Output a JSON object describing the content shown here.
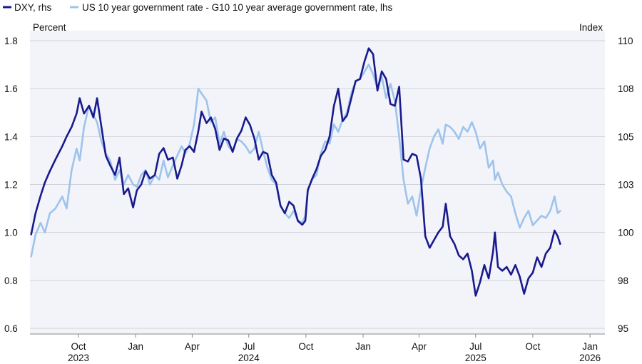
{
  "chart_data": {
    "type": "line",
    "title": "",
    "legend": {
      "placement": "top-left",
      "entries": [
        {
          "label": "DXY, rhs",
          "color": "#1a1a8c"
        },
        {
          "label": "US 10 year government rate - G10 10 year average government rate, lhs",
          "color": "#9ec3ec"
        }
      ]
    },
    "y_left": {
      "unit_label": "Percent",
      "min": 0.6,
      "max": 1.8,
      "ticks": [
        "0.6",
        "0.8",
        "1.0",
        "1.2",
        "1.4",
        "1.6",
        "1.8"
      ]
    },
    "y_right": {
      "unit_label": "Index",
      "min": 95,
      "max": 110,
      "ticks": [
        "95",
        "98",
        "100",
        "103",
        "105",
        "108",
        "110"
      ]
    },
    "x_axis": {
      "start": "2023-07-15",
      "end": "2026-01-25",
      "ticks": [
        {
          "date": "2023-10-01",
          "label": "Oct"
        },
        {
          "date": "2024-01-01",
          "label": "Jan"
        },
        {
          "date": "2024-04-01",
          "label": "Apr"
        },
        {
          "date": "2024-07-01",
          "label": "Jul"
        },
        {
          "date": "2024-10-01",
          "label": "Oct"
        },
        {
          "date": "2025-01-01",
          "label": "Jan"
        },
        {
          "date": "2025-04-01",
          "label": "Apr"
        },
        {
          "date": "2025-07-01",
          "label": "Jul"
        },
        {
          "date": "2025-10-01",
          "label": "Oct"
        },
        {
          "date": "2026-01-01",
          "label": "Jan"
        }
      ],
      "years": [
        {
          "date": "2023-10-01",
          "label": "2023"
        },
        {
          "date": "2024-07-01",
          "label": "2024"
        },
        {
          "date": "2025-07-01",
          "label": "2025"
        },
        {
          "date": "2026-01-01",
          "label": "2026"
        }
      ]
    },
    "grid": true,
    "series": [
      {
        "name": "DXY, rhs",
        "axis": "right",
        "color": "#1a1a8c",
        "points": [
          [
            "2023-07-17",
            99.9
          ],
          [
            "2023-07-24",
            101.0
          ],
          [
            "2023-08-01",
            101.9
          ],
          [
            "2023-08-08",
            102.6
          ],
          [
            "2023-08-16",
            103.2
          ],
          [
            "2023-08-25",
            103.8
          ],
          [
            "2023-09-05",
            104.5
          ],
          [
            "2023-09-12",
            105.0
          ],
          [
            "2023-09-20",
            105.5
          ],
          [
            "2023-09-28",
            106.2
          ],
          [
            "2023-10-03",
            107.0
          ],
          [
            "2023-10-10",
            106.2
          ],
          [
            "2023-10-18",
            106.6
          ],
          [
            "2023-10-25",
            106.0
          ],
          [
            "2023-10-31",
            107.0
          ],
          [
            "2023-11-07",
            105.5
          ],
          [
            "2023-11-14",
            104.0
          ],
          [
            "2023-11-21",
            103.5
          ],
          [
            "2023-11-29",
            103.0
          ],
          [
            "2023-12-06",
            103.9
          ],
          [
            "2023-12-13",
            102.0
          ],
          [
            "2023-12-20",
            102.3
          ],
          [
            "2023-12-28",
            101.3
          ],
          [
            "2024-01-03",
            102.2
          ],
          [
            "2024-01-10",
            102.5
          ],
          [
            "2024-01-17",
            103.2
          ],
          [
            "2024-01-24",
            102.8
          ],
          [
            "2024-02-01",
            103.0
          ],
          [
            "2024-02-08",
            104.1
          ],
          [
            "2024-02-15",
            104.4
          ],
          [
            "2024-02-22",
            103.8
          ],
          [
            "2024-03-01",
            103.9
          ],
          [
            "2024-03-08",
            102.8
          ],
          [
            "2024-03-15",
            103.5
          ],
          [
            "2024-03-21",
            104.3
          ],
          [
            "2024-03-28",
            104.5
          ],
          [
            "2024-04-04",
            104.2
          ],
          [
            "2024-04-11",
            105.3
          ],
          [
            "2024-04-16",
            106.3
          ],
          [
            "2024-04-24",
            105.7
          ],
          [
            "2024-05-01",
            106.0
          ],
          [
            "2024-05-08",
            105.4
          ],
          [
            "2024-05-15",
            104.3
          ],
          [
            "2024-05-22",
            104.9
          ],
          [
            "2024-05-29",
            104.8
          ],
          [
            "2024-06-05",
            104.2
          ],
          [
            "2024-06-12",
            104.9
          ],
          [
            "2024-06-19",
            105.3
          ],
          [
            "2024-06-26",
            106.0
          ],
          [
            "2024-07-03",
            105.6
          ],
          [
            "2024-07-10",
            104.9
          ],
          [
            "2024-07-17",
            103.8
          ],
          [
            "2024-07-24",
            104.2
          ],
          [
            "2024-07-31",
            104.1
          ],
          [
            "2024-08-07",
            103.0
          ],
          [
            "2024-08-14",
            102.6
          ],
          [
            "2024-08-21",
            101.4
          ],
          [
            "2024-08-28",
            101.0
          ],
          [
            "2024-09-04",
            101.6
          ],
          [
            "2024-09-11",
            101.4
          ],
          [
            "2024-09-18",
            100.6
          ],
          [
            "2024-09-25",
            100.4
          ],
          [
            "2024-09-30",
            100.6
          ],
          [
            "2024-10-04",
            102.2
          ],
          [
            "2024-10-11",
            102.8
          ],
          [
            "2024-10-18",
            103.3
          ],
          [
            "2024-10-25",
            104.0
          ],
          [
            "2024-11-01",
            104.3
          ],
          [
            "2024-11-08",
            105.0
          ],
          [
            "2024-11-15",
            106.6
          ],
          [
            "2024-11-22",
            107.5
          ],
          [
            "2024-11-29",
            105.8
          ],
          [
            "2024-12-06",
            106.1
          ],
          [
            "2024-12-13",
            107.0
          ],
          [
            "2024-12-20",
            107.9
          ],
          [
            "2024-12-27",
            108.0
          ],
          [
            "2025-01-03",
            108.9
          ],
          [
            "2025-01-10",
            109.6
          ],
          [
            "2025-01-17",
            109.3
          ],
          [
            "2025-01-24",
            107.4
          ],
          [
            "2025-01-31",
            108.4
          ],
          [
            "2025-02-07",
            108.0
          ],
          [
            "2025-02-14",
            106.7
          ],
          [
            "2025-02-21",
            106.6
          ],
          [
            "2025-02-28",
            107.6
          ],
          [
            "2025-03-07",
            103.8
          ],
          [
            "2025-03-14",
            103.7
          ],
          [
            "2025-03-21",
            104.1
          ],
          [
            "2025-03-28",
            104.0
          ],
          [
            "2025-04-04",
            102.8
          ],
          [
            "2025-04-11",
            99.8
          ],
          [
            "2025-04-18",
            99.2
          ],
          [
            "2025-04-25",
            99.6
          ],
          [
            "2025-05-02",
            100.0
          ],
          [
            "2025-05-09",
            100.3
          ],
          [
            "2025-05-14",
            101.5
          ],
          [
            "2025-05-21",
            99.8
          ],
          [
            "2025-05-28",
            99.4
          ],
          [
            "2025-06-04",
            98.8
          ],
          [
            "2025-06-11",
            98.6
          ],
          [
            "2025-06-18",
            98.9
          ],
          [
            "2025-06-25",
            98.0
          ],
          [
            "2025-07-01",
            96.7
          ],
          [
            "2025-07-08",
            97.4
          ],
          [
            "2025-07-15",
            98.3
          ],
          [
            "2025-07-22",
            97.6
          ],
          [
            "2025-07-29",
            99.0
          ],
          [
            "2025-08-01",
            100.0
          ],
          [
            "2025-08-06",
            98.2
          ],
          [
            "2025-08-13",
            98.0
          ],
          [
            "2025-08-20",
            98.2
          ],
          [
            "2025-08-27",
            97.8
          ],
          [
            "2025-09-03",
            98.3
          ],
          [
            "2025-09-10",
            97.7
          ],
          [
            "2025-09-17",
            96.8
          ],
          [
            "2025-09-24",
            97.6
          ],
          [
            "2025-10-01",
            97.9
          ],
          [
            "2025-10-08",
            98.7
          ],
          [
            "2025-10-15",
            98.2
          ],
          [
            "2025-10-22",
            98.9
          ],
          [
            "2025-10-29",
            99.2
          ],
          [
            "2025-11-05",
            100.1
          ],
          [
            "2025-11-10",
            99.8
          ],
          [
            "2025-11-14",
            99.4
          ]
        ]
      },
      {
        "name": "US 10 year government rate - G10 10 year average government rate, lhs",
        "axis": "left",
        "color": "#9ec3ec",
        "points": [
          [
            "2023-07-17",
            0.9
          ],
          [
            "2023-07-24",
            0.99
          ],
          [
            "2023-08-01",
            1.04
          ],
          [
            "2023-08-08",
            1.0
          ],
          [
            "2023-08-16",
            1.08
          ],
          [
            "2023-08-25",
            1.1
          ],
          [
            "2023-09-05",
            1.15
          ],
          [
            "2023-09-12",
            1.1
          ],
          [
            "2023-09-20",
            1.26
          ],
          [
            "2023-09-28",
            1.35
          ],
          [
            "2023-10-03",
            1.3
          ],
          [
            "2023-10-10",
            1.44
          ],
          [
            "2023-10-18",
            1.53
          ],
          [
            "2023-10-25",
            1.49
          ],
          [
            "2023-10-31",
            1.46
          ],
          [
            "2023-11-07",
            1.38
          ],
          [
            "2023-11-14",
            1.33
          ],
          [
            "2023-11-21",
            1.3
          ],
          [
            "2023-11-29",
            1.22
          ],
          [
            "2023-12-06",
            1.26
          ],
          [
            "2023-12-13",
            1.2
          ],
          [
            "2023-12-20",
            1.24
          ],
          [
            "2023-12-28",
            1.2
          ],
          [
            "2024-01-03",
            1.19
          ],
          [
            "2024-01-10",
            1.24
          ],
          [
            "2024-01-17",
            1.26
          ],
          [
            "2024-01-24",
            1.2
          ],
          [
            "2024-02-01",
            1.24
          ],
          [
            "2024-02-08",
            1.22
          ],
          [
            "2024-02-15",
            1.3
          ],
          [
            "2024-02-22",
            1.23
          ],
          [
            "2024-03-01",
            1.28
          ],
          [
            "2024-03-08",
            1.32
          ],
          [
            "2024-03-15",
            1.36
          ],
          [
            "2024-03-21",
            1.33
          ],
          [
            "2024-03-28",
            1.37
          ],
          [
            "2024-04-04",
            1.45
          ],
          [
            "2024-04-11",
            1.6
          ],
          [
            "2024-04-16",
            1.58
          ],
          [
            "2024-04-24",
            1.55
          ],
          [
            "2024-05-01",
            1.46
          ],
          [
            "2024-05-08",
            1.48
          ],
          [
            "2024-05-15",
            1.37
          ],
          [
            "2024-05-22",
            1.42
          ],
          [
            "2024-05-29",
            1.36
          ],
          [
            "2024-06-05",
            1.34
          ],
          [
            "2024-06-12",
            1.39
          ],
          [
            "2024-06-19",
            1.38
          ],
          [
            "2024-06-26",
            1.36
          ],
          [
            "2024-07-03",
            1.33
          ],
          [
            "2024-07-10",
            1.35
          ],
          [
            "2024-07-17",
            1.42
          ],
          [
            "2024-07-24",
            1.34
          ],
          [
            "2024-07-31",
            1.27
          ],
          [
            "2024-08-07",
            1.22
          ],
          [
            "2024-08-14",
            1.2
          ],
          [
            "2024-08-21",
            1.11
          ],
          [
            "2024-08-28",
            1.08
          ],
          [
            "2024-09-04",
            1.06
          ],
          [
            "2024-09-11",
            1.09
          ],
          [
            "2024-09-18",
            1.05
          ],
          [
            "2024-09-25",
            1.04
          ],
          [
            "2024-09-30",
            1.07
          ],
          [
            "2024-10-04",
            1.18
          ],
          [
            "2024-10-11",
            1.22
          ],
          [
            "2024-10-18",
            1.24
          ],
          [
            "2024-10-25",
            1.33
          ],
          [
            "2024-11-01",
            1.38
          ],
          [
            "2024-11-08",
            1.37
          ],
          [
            "2024-11-15",
            1.45
          ],
          [
            "2024-11-22",
            1.42
          ],
          [
            "2024-11-29",
            1.47
          ],
          [
            "2024-12-06",
            1.5
          ],
          [
            "2024-12-13",
            1.58
          ],
          [
            "2024-12-20",
            1.63
          ],
          [
            "2024-12-27",
            1.64
          ],
          [
            "2025-01-03",
            1.67
          ],
          [
            "2025-01-10",
            1.7
          ],
          [
            "2025-01-17",
            1.66
          ],
          [
            "2025-01-24",
            1.6
          ],
          [
            "2025-01-31",
            1.65
          ],
          [
            "2025-02-07",
            1.56
          ],
          [
            "2025-02-14",
            1.62
          ],
          [
            "2025-02-21",
            1.55
          ],
          [
            "2025-02-28",
            1.4
          ],
          [
            "2025-03-07",
            1.22
          ],
          [
            "2025-03-14",
            1.12
          ],
          [
            "2025-03-21",
            1.15
          ],
          [
            "2025-03-28",
            1.07
          ],
          [
            "2025-04-04",
            1.18
          ],
          [
            "2025-04-11",
            1.27
          ],
          [
            "2025-04-18",
            1.35
          ],
          [
            "2025-04-25",
            1.4
          ],
          [
            "2025-05-02",
            1.43
          ],
          [
            "2025-05-09",
            1.37
          ],
          [
            "2025-05-14",
            1.45
          ],
          [
            "2025-05-21",
            1.44
          ],
          [
            "2025-05-28",
            1.42
          ],
          [
            "2025-06-04",
            1.39
          ],
          [
            "2025-06-11",
            1.44
          ],
          [
            "2025-06-18",
            1.42
          ],
          [
            "2025-06-25",
            1.46
          ],
          [
            "2025-07-01",
            1.42
          ],
          [
            "2025-07-08",
            1.35
          ],
          [
            "2025-07-15",
            1.38
          ],
          [
            "2025-07-22",
            1.27
          ],
          [
            "2025-07-29",
            1.3
          ],
          [
            "2025-08-01",
            1.22
          ],
          [
            "2025-08-06",
            1.25
          ],
          [
            "2025-08-13",
            1.2
          ],
          [
            "2025-08-20",
            1.17
          ],
          [
            "2025-08-27",
            1.15
          ],
          [
            "2025-09-03",
            1.08
          ],
          [
            "2025-09-10",
            1.02
          ],
          [
            "2025-09-17",
            1.06
          ],
          [
            "2025-09-24",
            1.09
          ],
          [
            "2025-10-01",
            1.03
          ],
          [
            "2025-10-08",
            1.05
          ],
          [
            "2025-10-15",
            1.07
          ],
          [
            "2025-10-22",
            1.06
          ],
          [
            "2025-10-29",
            1.09
          ],
          [
            "2025-11-05",
            1.15
          ],
          [
            "2025-11-10",
            1.08
          ],
          [
            "2025-11-14",
            1.09
          ]
        ]
      }
    ]
  }
}
